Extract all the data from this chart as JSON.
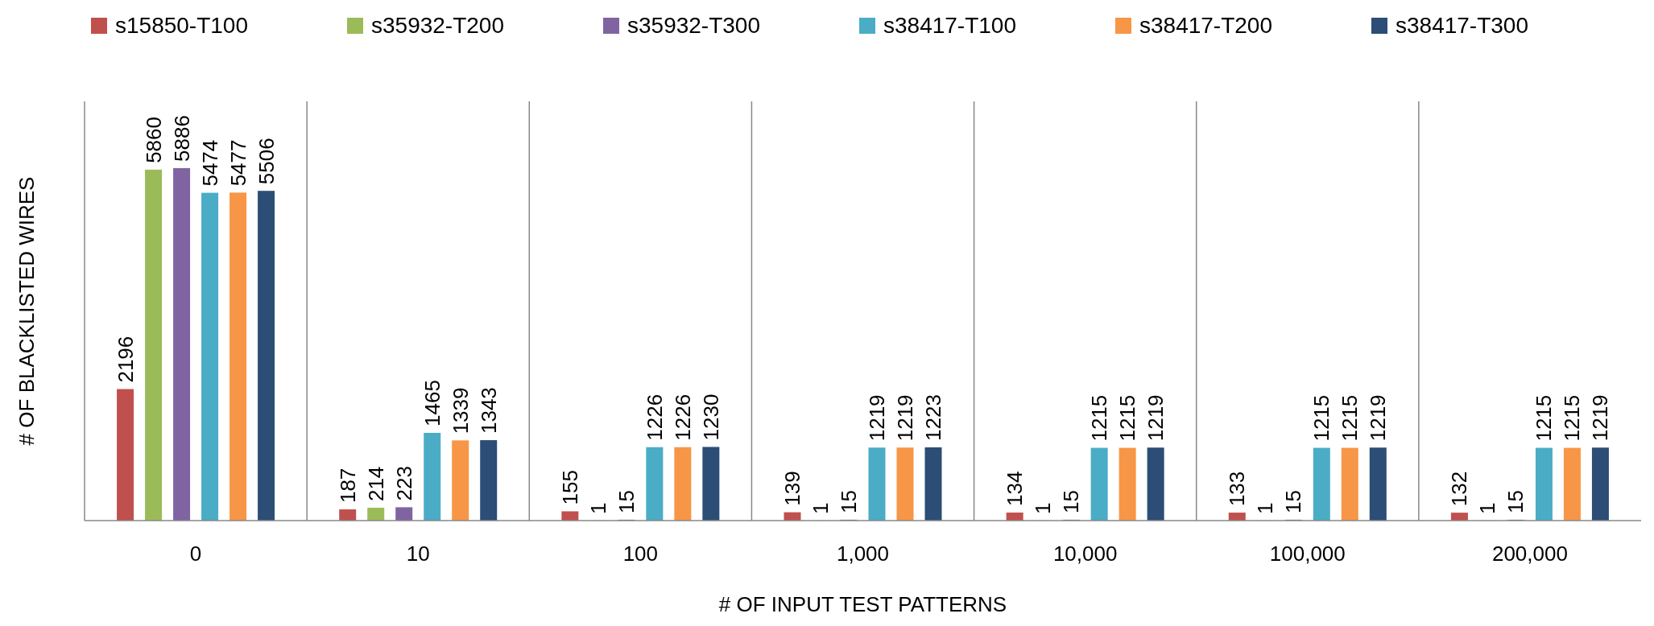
{
  "chart_data": {
    "type": "bar",
    "xlabel": "# OF INPUT TEST PATTERNS",
    "ylabel": "# OF BLACKLISTED WIRES",
    "categories": [
      "0",
      "10",
      "100",
      "1,000",
      "10,000",
      "100,000",
      "200,000"
    ],
    "series": [
      {
        "name": "s15850-T100",
        "color": "#c0504d",
        "values": [
          2196,
          187,
          155,
          139,
          134,
          133,
          132
        ]
      },
      {
        "name": "s35932-T200",
        "color": "#9bbb59",
        "values": [
          5860,
          214,
          1,
          1,
          1,
          1,
          1
        ]
      },
      {
        "name": "s35932-T300",
        "color": "#8064a2",
        "values": [
          5886,
          223,
          15,
          15,
          15,
          15,
          15
        ]
      },
      {
        "name": "s38417-T100",
        "color": "#4bacc6",
        "values": [
          5474,
          1465,
          1226,
          1219,
          1215,
          1215,
          1215
        ]
      },
      {
        "name": "s38417-T200",
        "color": "#f79646",
        "values": [
          5477,
          1339,
          1226,
          1219,
          1215,
          1215,
          1215
        ]
      },
      {
        "name": "s38417-T300",
        "color": "#2c4d75",
        "values": [
          5506,
          1343,
          1230,
          1223,
          1219,
          1219,
          1219
        ]
      }
    ],
    "ylim": [
      0,
      7000
    ],
    "data_labels": true,
    "grid": "x",
    "legend": "top",
    "tick_labels": "x"
  }
}
